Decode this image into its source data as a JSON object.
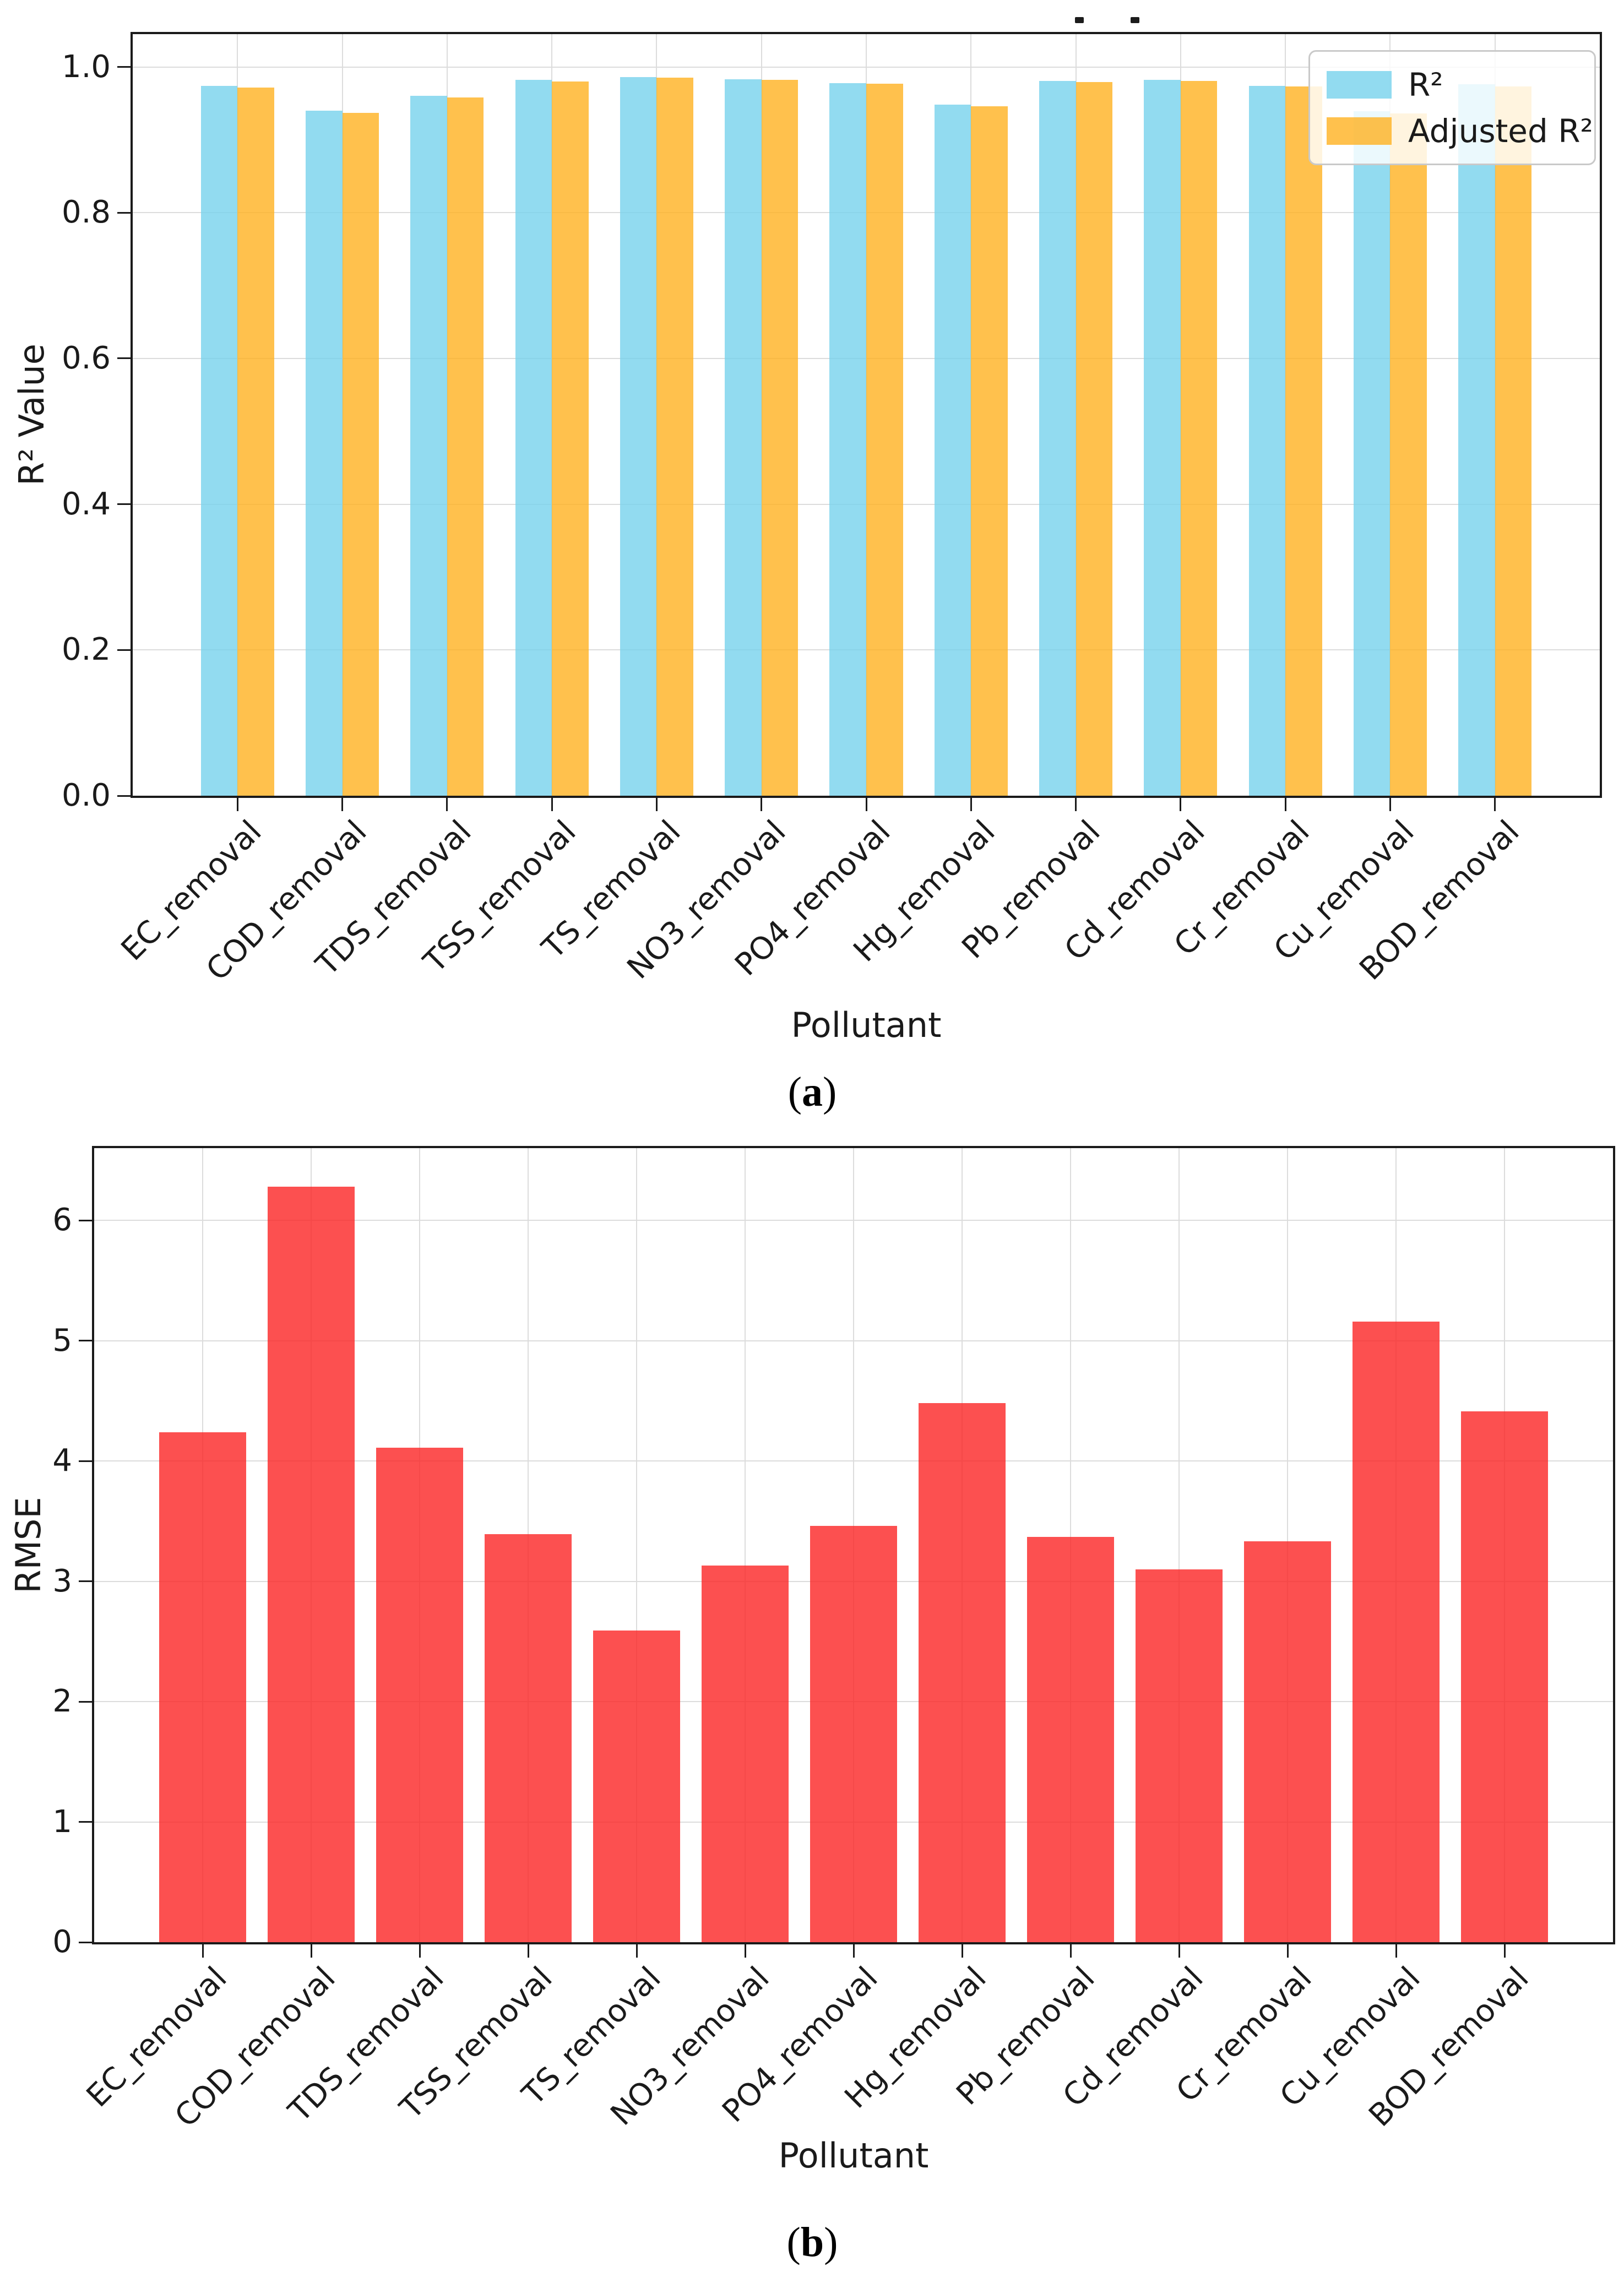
{
  "figure": {
    "panels": [
      {
        "open": "(",
        "letter": "a",
        "close": ")"
      },
      {
        "open": "(",
        "letter": "b",
        "close": ")"
      }
    ]
  },
  "chart_data": [
    {
      "id": "a",
      "type": "bar",
      "panel_label": "(a)",
      "xlabel": "Pollutant",
      "ylabel": "R² Value",
      "categories": [
        "EC_removal",
        "COD_removal",
        "TDS_removal",
        "TSS_removal",
        "TS_removal",
        "NO3_removal",
        "PO4_removal",
        "Hg_removal",
        "Pb_removal",
        "Cd_removal",
        "Cr_removal",
        "Cu_removal",
        "BOD_removal"
      ],
      "series": [
        {
          "name": "R²",
          "color": "#77D2EC",
          "opacity": 0.8,
          "values": [
            0.974,
            0.94,
            0.96,
            0.982,
            0.986,
            0.983,
            0.978,
            0.948,
            0.981,
            0.982,
            0.974,
            0.939,
            0.976
          ]
        },
        {
          "name": "Adjusted R²",
          "color": "#FFB221",
          "opacity": 0.8,
          "values": [
            0.972,
            0.937,
            0.958,
            0.98,
            0.985,
            0.982,
            0.977,
            0.946,
            0.979,
            0.981,
            0.973,
            0.936,
            0.973
          ]
        }
      ],
      "ylim": [
        0,
        1.045
      ],
      "yticks": [
        0.0,
        0.2,
        0.4,
        0.6,
        0.8,
        1.0
      ],
      "ytick_labels": [
        "0.0",
        "0.2",
        "0.4",
        "0.6",
        "0.8",
        "1.0"
      ],
      "grid": true,
      "legend": {
        "position": "upper right",
        "entries": [
          "R²",
          "Adjusted R²"
        ]
      },
      "bar_width": 0.35,
      "colors": {
        "grid": "#DCDCDC",
        "spine": "#1A1A1A"
      }
    },
    {
      "id": "b",
      "type": "bar",
      "panel_label": "(b)",
      "xlabel": "Pollutant",
      "ylabel": "RMSE",
      "categories": [
        "EC_removal",
        "COD_removal",
        "TDS_removal",
        "TSS_removal",
        "TS_removal",
        "NO3_removal",
        "PO4_removal",
        "Hg_removal",
        "Pb_removal",
        "Cd_removal",
        "Cr_removal",
        "Cu_removal",
        "BOD_removal"
      ],
      "series": [
        {
          "name": "RMSE",
          "color": "#FB2424",
          "opacity": 0.8,
          "values": [
            4.24,
            6.28,
            4.11,
            3.39,
            2.59,
            3.13,
            3.46,
            4.48,
            3.37,
            3.1,
            3.33,
            5.16,
            4.41
          ]
        }
      ],
      "ylim": [
        0,
        6.6
      ],
      "yticks": [
        0,
        1,
        2,
        3,
        4,
        5,
        6
      ],
      "ytick_labels": [
        "0",
        "1",
        "2",
        "3",
        "4",
        "5",
        "6"
      ],
      "grid": true,
      "legend": null,
      "bar_width": 0.8,
      "colors": {
        "grid": "#DCDCDC",
        "spine": "#1A1A1A"
      }
    }
  ]
}
